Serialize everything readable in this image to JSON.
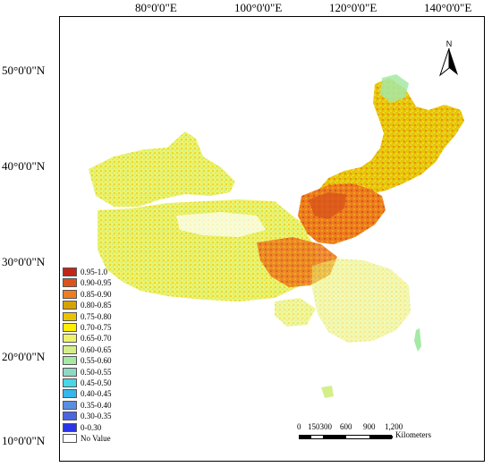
{
  "map": {
    "longitude_labels": [
      "80°0'0\"E",
      "100°0'0\"E",
      "120°0'0\"E",
      "140°0'0\"E"
    ],
    "latitude_labels": [
      "50°0'0\"N",
      "40°0'0\"N",
      "30°0'0\"N",
      "20°0'0\"N",
      "10°0'0\"N"
    ],
    "north_label": "N",
    "scale": {
      "ticks": [
        "0",
        "150300",
        "600",
        "900",
        "1,200"
      ],
      "unit": "Kilometers"
    },
    "legend": [
      {
        "label": "0.95-1.0",
        "color": "#c0261a"
      },
      {
        "label": "0.90-0.95",
        "color": "#d8541c"
      },
      {
        "label": "0.85-0.90",
        "color": "#ee7d1f"
      },
      {
        "label": "0.80-0.85",
        "color": "#d7a200"
      },
      {
        "label": "0.75-0.80",
        "color": "#e8c400"
      },
      {
        "label": "0.70-0.75",
        "color": "#ffee00"
      },
      {
        "label": "0.65-0.70",
        "color": "#eef36a"
      },
      {
        "label": "0.60-0.65",
        "color": "#d4ef8a"
      },
      {
        "label": "0.55-0.60",
        "color": "#a6e9a4"
      },
      {
        "label": "0.50-0.55",
        "color": "#8ed9c4"
      },
      {
        "label": "0.45-0.50",
        "color": "#47d7e8"
      },
      {
        "label": "0.40-0.45",
        "color": "#36b6ea"
      },
      {
        "label": "0.35-0.40",
        "color": "#5a8fdf"
      },
      {
        "label": "0.30-0.35",
        "color": "#4a66e0"
      },
      {
        "label": "0-0.30",
        "color": "#2a34e8"
      },
      {
        "label": "No Value",
        "color": "#ffffff"
      }
    ]
  }
}
